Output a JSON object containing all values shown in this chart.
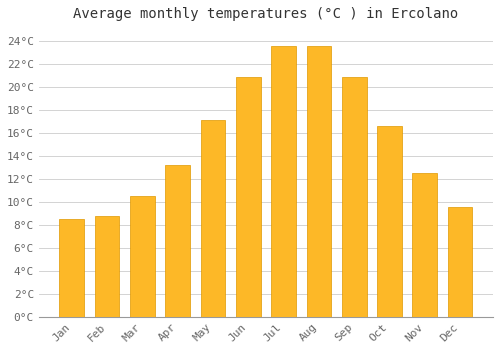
{
  "title": "Average monthly temperatures (°C ) in Ercolano",
  "months": [
    "Jan",
    "Feb",
    "Mar",
    "Apr",
    "May",
    "Jun",
    "Jul",
    "Aug",
    "Sep",
    "Oct",
    "Nov",
    "Dec"
  ],
  "values": [
    8.5,
    8.8,
    10.5,
    13.2,
    17.1,
    20.8,
    23.5,
    23.5,
    20.8,
    16.6,
    12.5,
    9.5
  ],
  "bar_color_top": "#FDB827",
  "bar_color_bottom": "#F5A000",
  "bar_edge_color": "#E09800",
  "background_color": "#FFFFFF",
  "plot_bg_color": "#FFFFFF",
  "grid_color": "#CCCCCC",
  "ylim": [
    0,
    25
  ],
  "ytick_step": 2,
  "title_fontsize": 10,
  "tick_fontsize": 8,
  "title_color": "#333333",
  "tick_color": "#666666",
  "bar_width": 0.7
}
